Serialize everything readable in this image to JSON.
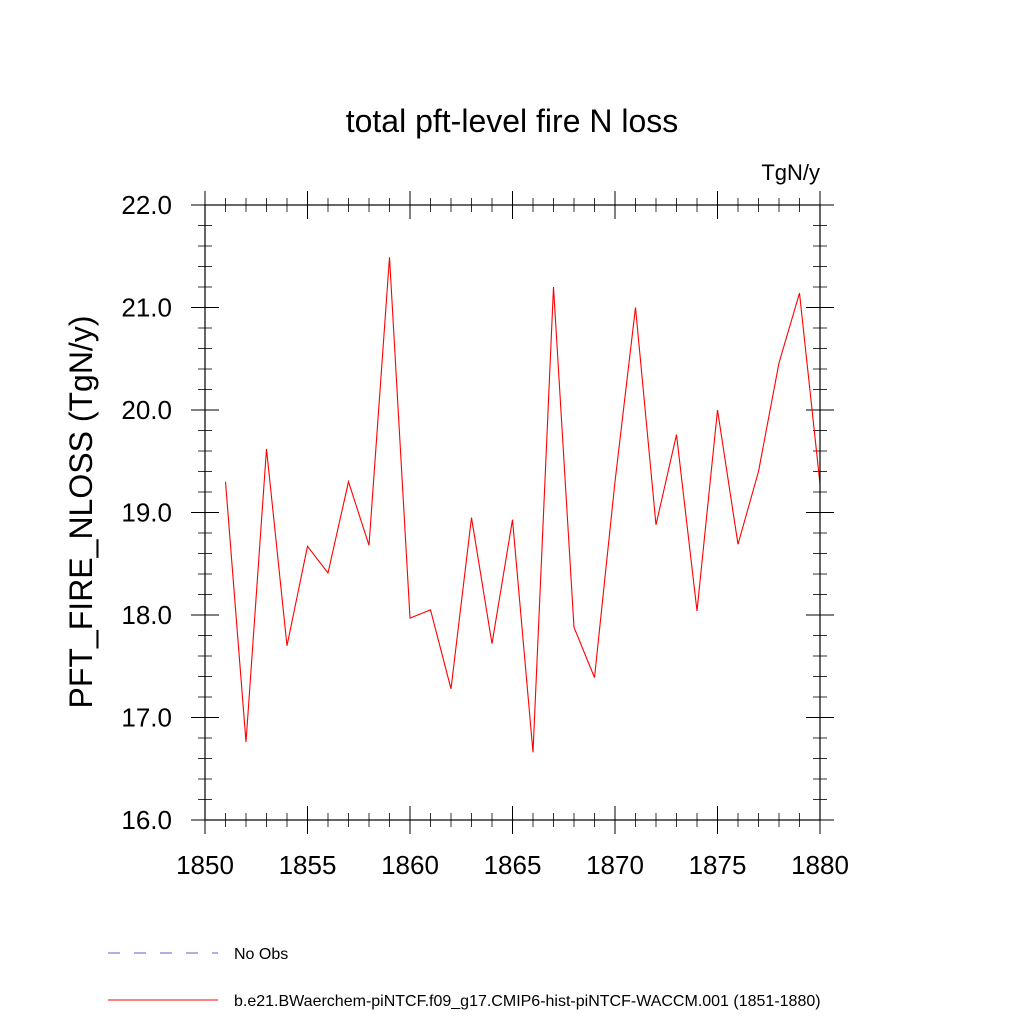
{
  "chart_data": {
    "type": "line",
    "title": "total pft-level fire N loss",
    "units_label": "TgN/y",
    "xlabel": "",
    "ylabel": "PFT_FIRE_NLOSS  (TgN/y)",
    "xlim": [
      1850,
      1880
    ],
    "ylim": [
      16.0,
      22.0
    ],
    "x_ticks": [
      "1850",
      "1855",
      "1860",
      "1865",
      "1870",
      "1875",
      "1880"
    ],
    "y_ticks": [
      "16.0",
      "17.0",
      "18.0",
      "19.0",
      "20.0",
      "21.0",
      "22.0"
    ],
    "grid": false,
    "series": [
      {
        "name": "b.e21.BWaerchem-piNTCF.f09_g17.CMIP6-hist-piNTCF-WACCM.001 (1851-1880)",
        "color": "#ff0000",
        "x": [
          1851,
          1852,
          1853,
          1854,
          1855,
          1856,
          1857,
          1858,
          1859,
          1860,
          1861,
          1862,
          1863,
          1864,
          1865,
          1866,
          1867,
          1868,
          1869,
          1870,
          1871,
          1872,
          1873,
          1874,
          1875,
          1876,
          1877,
          1878,
          1879,
          1880
        ],
        "y": [
          19.3,
          16.76,
          19.62,
          17.7,
          18.67,
          18.41,
          19.3,
          18.68,
          21.49,
          17.97,
          18.05,
          17.28,
          18.95,
          17.72,
          18.93,
          16.66,
          21.2,
          17.88,
          17.39,
          19.3,
          21.0,
          18.88,
          19.76,
          18.04,
          20.0,
          18.69,
          19.4,
          20.46,
          21.14,
          19.28
        ]
      }
    ],
    "legend": {
      "placement": "bottom",
      "items": [
        {
          "label": "No Obs",
          "color": "#6a5acd",
          "style": "dashed"
        },
        {
          "label": "b.e21.BWaerchem-piNTCF.f09_g17.CMIP6-hist-piNTCF-WACCM.001 (1851-1880)",
          "color": "#ff0000",
          "style": "solid"
        }
      ]
    }
  }
}
